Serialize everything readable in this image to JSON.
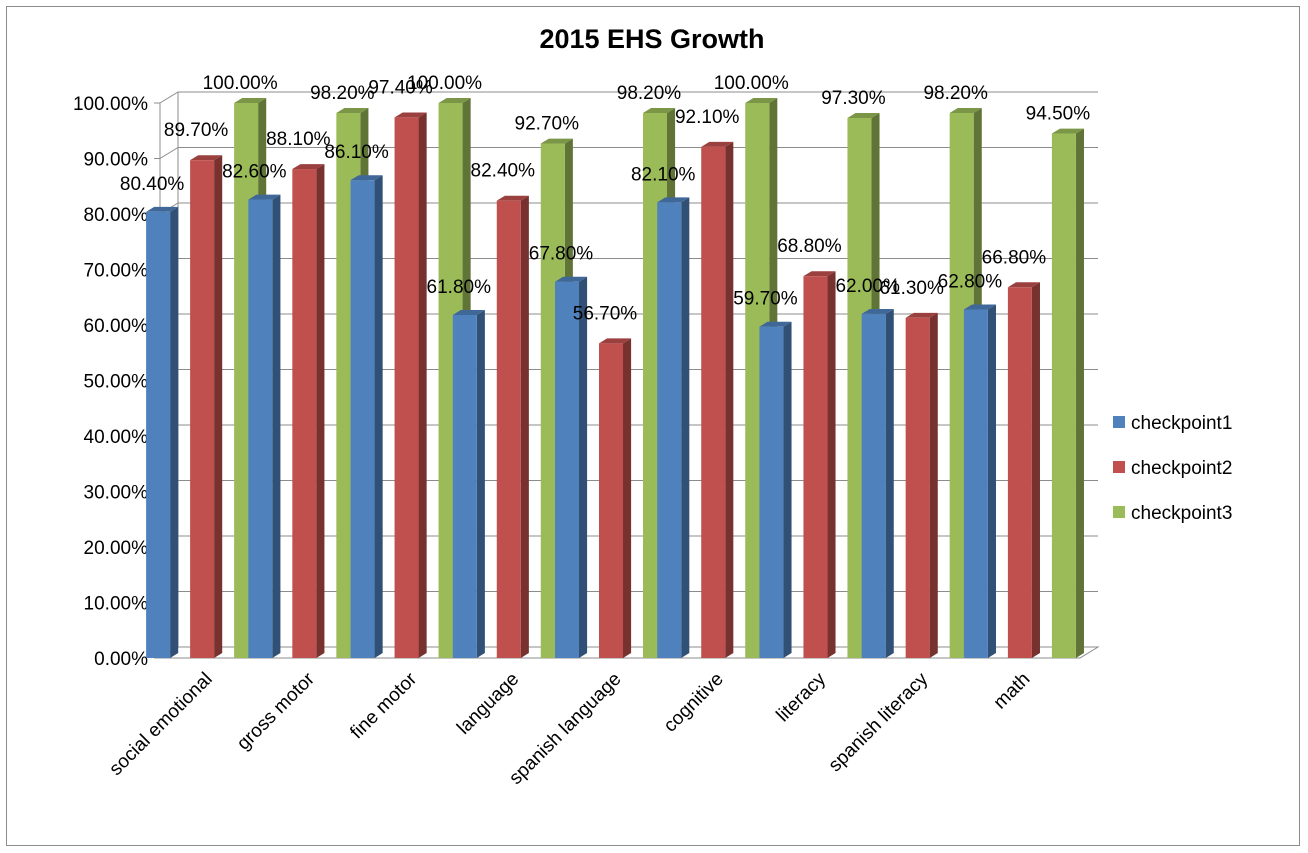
{
  "chart_data": {
    "type": "bar",
    "title": "2015 EHS Growth",
    "categories": [
      "social emotional",
      "gross motor",
      "fine motor",
      "language",
      "spanish language",
      "cognitive",
      "literacy",
      "spanish literacy",
      "math"
    ],
    "series": [
      {
        "name": "checkpoint1",
        "color": "#4F81BD",
        "values": [
          80.4,
          82.6,
          86.1,
          61.8,
          67.8,
          82.1,
          59.7,
          62.0,
          62.8
        ],
        "labels": [
          "80.40%",
          "82.60%",
          "86.10%",
          "61.80%",
          "67.80%",
          "82.10%",
          "59.70%",
          "62.00%",
          "62.80%"
        ]
      },
      {
        "name": "checkpoint2",
        "color": "#C0504D",
        "values": [
          89.7,
          88.1,
          97.4,
          82.4,
          56.7,
          92.1,
          68.8,
          61.3,
          66.8
        ],
        "labels": [
          "89.70%",
          "88.10%",
          "97.40%",
          "82.40%",
          "56.70%",
          "92.10%",
          "68.80%",
          "61.30%",
          "66.80%"
        ]
      },
      {
        "name": "checkpoint3",
        "color": "#9BBB59",
        "values": [
          100.0,
          98.2,
          100.0,
          92.7,
          98.2,
          100.0,
          97.3,
          98.2,
          94.5
        ],
        "labels": [
          "100.00%",
          "98.20%",
          "100.00%",
          "92.70%",
          "98.20%",
          "100.00%",
          "97.30%",
          "98.20%",
          "94.50%"
        ]
      }
    ],
    "y_ticks": [
      "0.00%",
      "10.00%",
      "20.00%",
      "30.00%",
      "40.00%",
      "50.00%",
      "60.00%",
      "70.00%",
      "80.00%",
      "90.00%",
      "100.00%"
    ],
    "ylim": [
      0,
      100
    ],
    "xlabel": "",
    "ylabel": "",
    "grid": true,
    "legend_position": "right",
    "style": "3d-clustered-column"
  }
}
